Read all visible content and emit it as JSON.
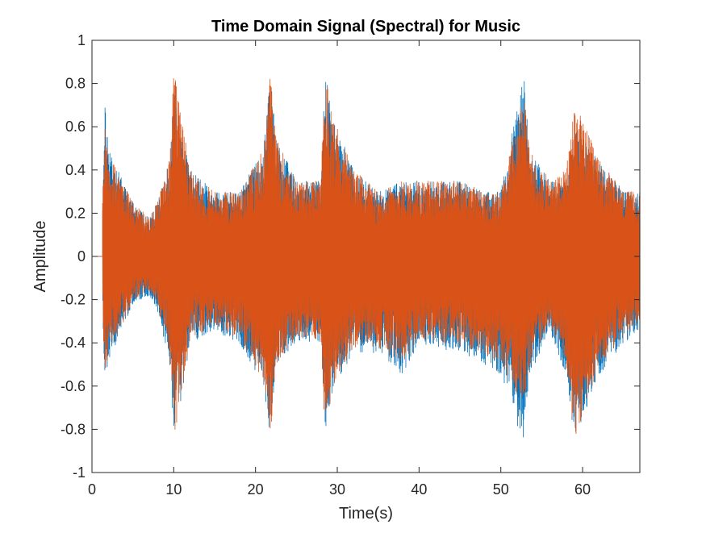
{
  "chart_data": {
    "type": "line",
    "title": "Time Domain Signal (Spectral) for Music",
    "xlabel": "Time(s)",
    "ylabel": "Amplitude",
    "xlim": [
      0,
      67
    ],
    "ylim": [
      -1,
      1
    ],
    "xticks": [
      0,
      10,
      20,
      30,
      40,
      50,
      60
    ],
    "xtick_labels": [
      "0",
      "10",
      "20",
      "30",
      "40",
      "50",
      "60"
    ],
    "yticks": [
      -1,
      -0.8,
      -0.6,
      -0.4,
      -0.2,
      0,
      0.2,
      0.4,
      0.6,
      0.8,
      1
    ],
    "ytick_labels": [
      "-1",
      "-0.8",
      "-0.6",
      "-0.4",
      "-0.2",
      "0",
      "0.2",
      "0.4",
      "0.6",
      "0.8",
      "1"
    ],
    "grid": false,
    "legend": "none",
    "series": [
      {
        "color": "#0072BD",
        "signal_start": 1.3,
        "envelope_x": [
          1.3,
          1.6,
          2.0,
          3.0,
          5.0,
          7.0,
          8.0,
          9.5,
          10.0,
          12,
          15,
          18,
          21.0,
          21.8,
          22.5,
          25,
          28,
          28.5,
          29.5,
          32,
          35,
          38,
          40,
          45,
          48,
          50,
          52.8,
          53.5,
          56,
          58,
          59,
          62,
          65,
          67
        ],
        "envelope_max": [
          0.3,
          0.7,
          0.55,
          0.42,
          0.25,
          0.18,
          0.25,
          0.45,
          0.77,
          0.4,
          0.3,
          0.3,
          0.5,
          0.86,
          0.55,
          0.35,
          0.35,
          0.85,
          0.65,
          0.4,
          0.3,
          0.35,
          0.35,
          0.35,
          0.3,
          0.3,
          0.86,
          0.5,
          0.35,
          0.35,
          0.6,
          0.45,
          0.3,
          0.3
        ],
        "envelope_min": [
          -0.3,
          -0.6,
          -0.5,
          -0.4,
          -0.22,
          -0.18,
          -0.25,
          -0.5,
          -0.88,
          -0.4,
          -0.35,
          -0.4,
          -0.6,
          -0.85,
          -0.5,
          -0.4,
          -0.4,
          -0.82,
          -0.6,
          -0.45,
          -0.45,
          -0.55,
          -0.4,
          -0.45,
          -0.5,
          -0.55,
          -0.87,
          -0.55,
          -0.35,
          -0.55,
          -0.85,
          -0.55,
          -0.4,
          -0.35
        ]
      },
      {
        "color": "#D95319",
        "signal_start": 1.3,
        "envelope_x": [
          1.3,
          1.6,
          2.0,
          3.0,
          5.0,
          7.0,
          8.0,
          9.5,
          10.0,
          12,
          15,
          18,
          21.0,
          21.8,
          22.5,
          25,
          28,
          28.5,
          29.5,
          32,
          35,
          38,
          40,
          45,
          48,
          50,
          52.8,
          53.5,
          56,
          58,
          59,
          62,
          65,
          67
        ],
        "envelope_max": [
          0.3,
          0.6,
          0.5,
          0.4,
          0.25,
          0.18,
          0.25,
          0.45,
          0.87,
          0.4,
          0.3,
          0.3,
          0.5,
          0.84,
          0.55,
          0.35,
          0.35,
          0.87,
          0.65,
          0.4,
          0.3,
          0.35,
          0.35,
          0.35,
          0.3,
          0.3,
          0.76,
          0.5,
          0.35,
          0.4,
          0.72,
          0.45,
          0.3,
          0.3
        ],
        "envelope_min": [
          -0.3,
          -0.55,
          -0.45,
          -0.38,
          -0.2,
          -0.16,
          -0.22,
          -0.45,
          -0.86,
          -0.38,
          -0.32,
          -0.38,
          -0.58,
          -0.86,
          -0.5,
          -0.38,
          -0.38,
          -0.86,
          -0.6,
          -0.42,
          -0.42,
          -0.5,
          -0.38,
          -0.42,
          -0.45,
          -0.5,
          -0.7,
          -0.5,
          -0.32,
          -0.5,
          -0.86,
          -0.5,
          -0.38,
          -0.3
        ]
      }
    ]
  }
}
